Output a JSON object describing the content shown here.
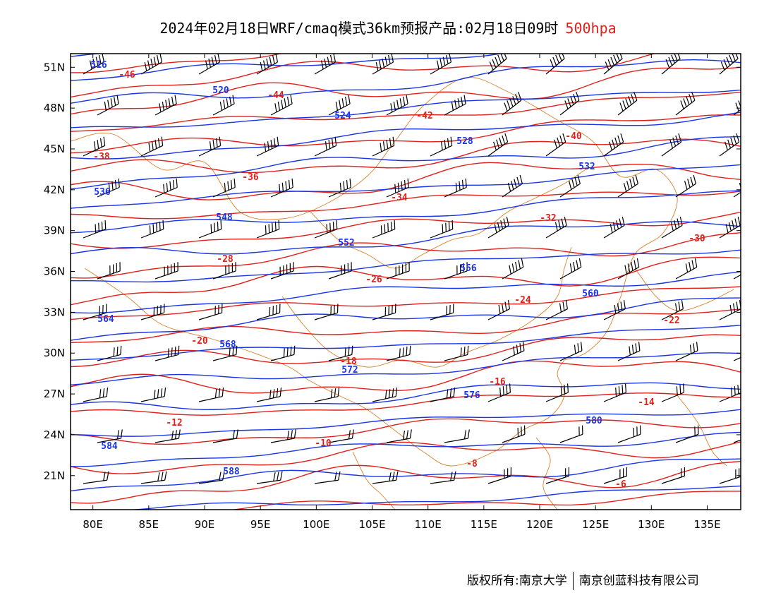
{
  "header": {
    "title": "2024年02月18日WRF/cmaq模式36km预报产品:02月18日09时",
    "level": "500hpa"
  },
  "map": {
    "lon_range": [
      78,
      138
    ],
    "lat_range": [
      18.5,
      52
    ],
    "lat_labels": [
      "51N",
      "48N",
      "45N",
      "42N",
      "39N",
      "36N",
      "33N",
      "30N",
      "27N",
      "24N",
      "21N"
    ],
    "lon_labels": [
      "80E",
      "85E",
      "90E",
      "95E",
      "100E",
      "105E",
      "110E",
      "115E",
      "120E",
      "125E",
      "130E",
      "135E"
    ],
    "colors": {
      "height": "#1a35e6",
      "temperature": "#e0201a",
      "boundary": "#d9822b",
      "wind": "#000000"
    },
    "height_labels": [
      "516",
      "520",
      "524",
      "528",
      "532",
      "536",
      "548",
      "552",
      "556",
      "560",
      "564",
      "568",
      "572",
      "576",
      "580",
      "584",
      "588"
    ],
    "temperature_labels": [
      "-46",
      "-44",
      "-42",
      "-40",
      "-38",
      "-36",
      "-34",
      "-32",
      "-30",
      "-28",
      "-26",
      "-24",
      "-22",
      "-20",
      "-18",
      "-16",
      "-14",
      "-12",
      "-10",
      "-8",
      "-6"
    ]
  },
  "footer": {
    "left": "版权所有:南京大学",
    "right": "南京创蓝科技有限公司"
  }
}
